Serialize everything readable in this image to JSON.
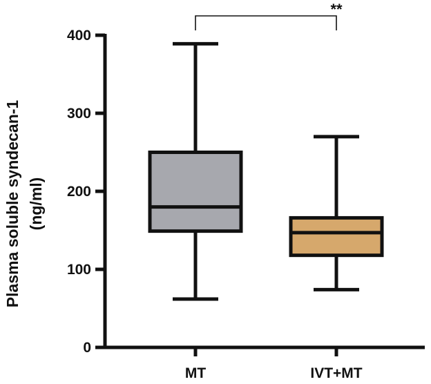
{
  "chart_data": {
    "type": "boxplot",
    "ylabel_lines": [
      "Plasma soluble syndecan-1",
      "(ng/ml)"
    ],
    "ylim": [
      0,
      400
    ],
    "yticks": [
      0,
      100,
      200,
      300,
      400
    ],
    "categories": [
      "MT",
      "IVT+MT"
    ],
    "boxes": [
      {
        "category": "MT",
        "min": 62,
        "q1": 149,
        "median": 180,
        "q3": 250,
        "max": 389,
        "color": "#a7a8ae"
      },
      {
        "category": "IVT+MT",
        "min": 74,
        "q1": 118,
        "median": 147,
        "q3": 166,
        "max": 270,
        "color": "#d6a86c"
      }
    ],
    "significance": {
      "from": "MT",
      "to": "IVT+MT",
      "label": "**"
    },
    "grid": false
  }
}
